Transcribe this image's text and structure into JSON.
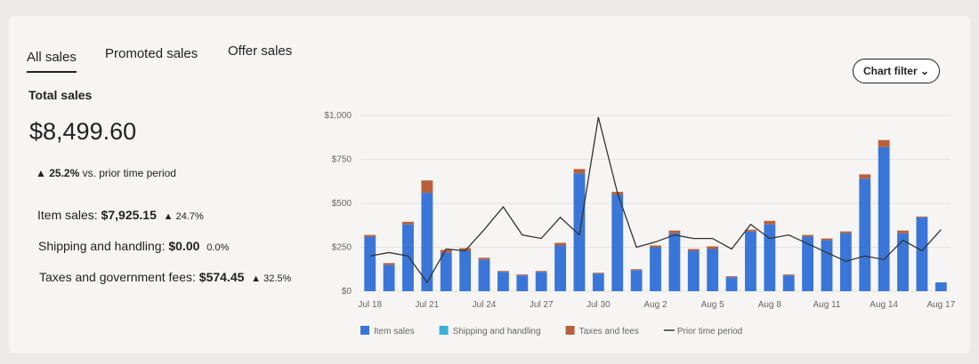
{
  "tabs": [
    "All sales",
    "Promoted sales",
    "Offer sales"
  ],
  "filter_button": "Chart filter",
  "summary": {
    "title": "Total sales",
    "total": "$8,499.60",
    "total_change": "25.2%",
    "total_change_note": "vs. prior time period",
    "rows": [
      {
        "label": "Item sales:",
        "value": "$7,925.15",
        "change": "24.7%",
        "up": true
      },
      {
        "label": "Shipping and handling:",
        "value": "$0.00",
        "change": "0.0%",
        "up": false
      },
      {
        "label": "Taxes and government fees:",
        "value": "$574.45",
        "change": "32.5%",
        "up": true
      }
    ]
  },
  "chart_data": {
    "type": "bar",
    "stacked": true,
    "categories": [
      "Jul 18",
      null,
      null,
      "Jul 21",
      null,
      null,
      "Jul 24",
      null,
      null,
      "Jul 27",
      null,
      null,
      "Jul 30",
      null,
      null,
      "Aug 2",
      null,
      null,
      "Aug 5",
      null,
      null,
      "Aug 8",
      null,
      null,
      "Aug 11",
      null,
      null,
      "Aug 14",
      null,
      null,
      "Aug 17"
    ],
    "series": [
      {
        "name": "Item sales",
        "color": "#3a76d8",
        "values": [
          310,
          150,
          380,
          560,
          220,
          230,
          180,
          110,
          90,
          110,
          260,
          670,
          100,
          550,
          120,
          250,
          330,
          230,
          240,
          80,
          340,
          380,
          90,
          310,
          290,
          330,
          640,
          820,
          330,
          420,
          50
        ]
      },
      {
        "name": "Shipping and handling",
        "color": "#3ab0d8",
        "values": [
          0,
          0,
          0,
          0,
          0,
          0,
          0,
          0,
          0,
          0,
          0,
          0,
          0,
          0,
          0,
          0,
          0,
          0,
          0,
          0,
          0,
          0,
          0,
          0,
          0,
          0,
          0,
          0,
          0,
          0,
          0
        ]
      },
      {
        "name": "Taxes and fees",
        "color": "#b8603a",
        "values": [
          10,
          10,
          15,
          70,
          15,
          15,
          10,
          5,
          5,
          5,
          15,
          25,
          5,
          15,
          5,
          10,
          15,
          10,
          15,
          5,
          10,
          20,
          5,
          10,
          10,
          10,
          25,
          40,
          15,
          5,
          0
        ]
      },
      {
        "name": "Prior time period",
        "type": "line",
        "color": "#333333",
        "values": [
          200,
          220,
          200,
          50,
          240,
          230,
          350,
          480,
          320,
          300,
          420,
          320,
          990,
          560,
          250,
          280,
          320,
          300,
          300,
          240,
          380,
          300,
          320,
          270,
          220,
          170,
          200,
          180,
          290,
          230,
          350
        ]
      }
    ],
    "ylim": [
      0,
      1000
    ],
    "yticks": [
      {
        "value": 0,
        "label": "$0"
      },
      {
        "value": 250,
        "label": "$250"
      },
      {
        "value": 500,
        "label": "$500"
      },
      {
        "value": 750,
        "label": "$750"
      },
      {
        "value": 1000,
        "label": "$1,000"
      }
    ],
    "legend": "bottom"
  }
}
